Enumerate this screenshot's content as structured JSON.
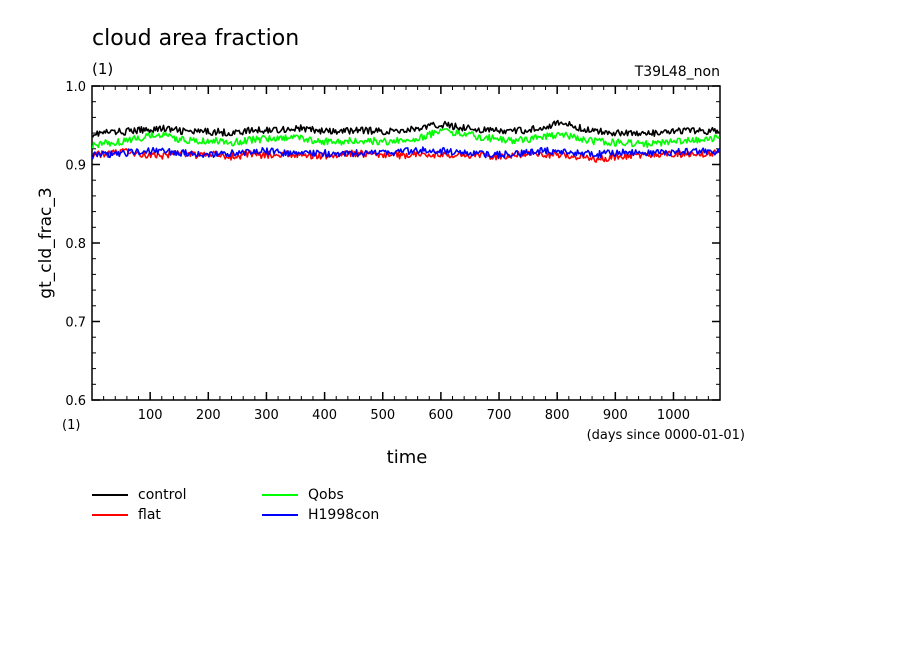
{
  "chart_data": {
    "type": "line",
    "title": "cloud area fraction",
    "unit_label": "(1)",
    "run_label": "T39L48_non",
    "ylabel": "gt_cld_frac_3",
    "xlabel": "time",
    "x_unit_label": "(days since 0000-01-01)",
    "y_unit_label": "(1)",
    "xlim": [
      0,
      1080
    ],
    "ylim": [
      0.6,
      1.0
    ],
    "x_ticks": [
      100,
      200,
      300,
      400,
      500,
      600,
      700,
      800,
      900,
      1000
    ],
    "y_ticks": [
      "0.6",
      "0.7",
      "0.8",
      "0.9",
      "1.0"
    ],
    "grid": false,
    "legend_position": "bottom-left",
    "x_step": 30,
    "series": [
      {
        "name": "control",
        "color": "#000000",
        "values": [
          0.939,
          0.941,
          0.942,
          0.944,
          0.946,
          0.943,
          0.941,
          0.942,
          0.94,
          0.943,
          0.944,
          0.945,
          0.946,
          0.943,
          0.941,
          0.944,
          0.943,
          0.942,
          0.944,
          0.947,
          0.951,
          0.948,
          0.945,
          0.943,
          0.942,
          0.944,
          0.949,
          0.953,
          0.946,
          0.942,
          0.941,
          0.94,
          0.939,
          0.941,
          0.943,
          0.942,
          0.944,
          0.945
        ]
      },
      {
        "name": "Qobs",
        "color": "#00ff00",
        "values": [
          0.925,
          0.928,
          0.93,
          0.935,
          0.938,
          0.932,
          0.929,
          0.93,
          0.928,
          0.931,
          0.933,
          0.935,
          0.934,
          0.93,
          0.928,
          0.931,
          0.93,
          0.929,
          0.932,
          0.935,
          0.943,
          0.94,
          0.936,
          0.933,
          0.93,
          0.932,
          0.936,
          0.938,
          0.933,
          0.929,
          0.928,
          0.927,
          0.926,
          0.928,
          0.93,
          0.932,
          0.935,
          0.94
        ]
      },
      {
        "name": "flat",
        "color": "#ff0000",
        "values": [
          0.912,
          0.914,
          0.916,
          0.913,
          0.911,
          0.914,
          0.912,
          0.913,
          0.91,
          0.913,
          0.912,
          0.914,
          0.913,
          0.911,
          0.912,
          0.914,
          0.913,
          0.911,
          0.912,
          0.914,
          0.912,
          0.913,
          0.911,
          0.91,
          0.912,
          0.914,
          0.913,
          0.911,
          0.909,
          0.907,
          0.91,
          0.912,
          0.913,
          0.914,
          0.912,
          0.913,
          0.915,
          0.912
        ]
      },
      {
        "name": "H1998con",
        "color": "#0000ff",
        "values": [
          0.911,
          0.913,
          0.915,
          0.918,
          0.917,
          0.915,
          0.914,
          0.913,
          0.915,
          0.916,
          0.917,
          0.915,
          0.914,
          0.915,
          0.913,
          0.914,
          0.916,
          0.915,
          0.917,
          0.918,
          0.917,
          0.916,
          0.914,
          0.912,
          0.913,
          0.915,
          0.918,
          0.916,
          0.914,
          0.913,
          0.915,
          0.916,
          0.914,
          0.915,
          0.917,
          0.918,
          0.916,
          0.917
        ]
      }
    ]
  }
}
